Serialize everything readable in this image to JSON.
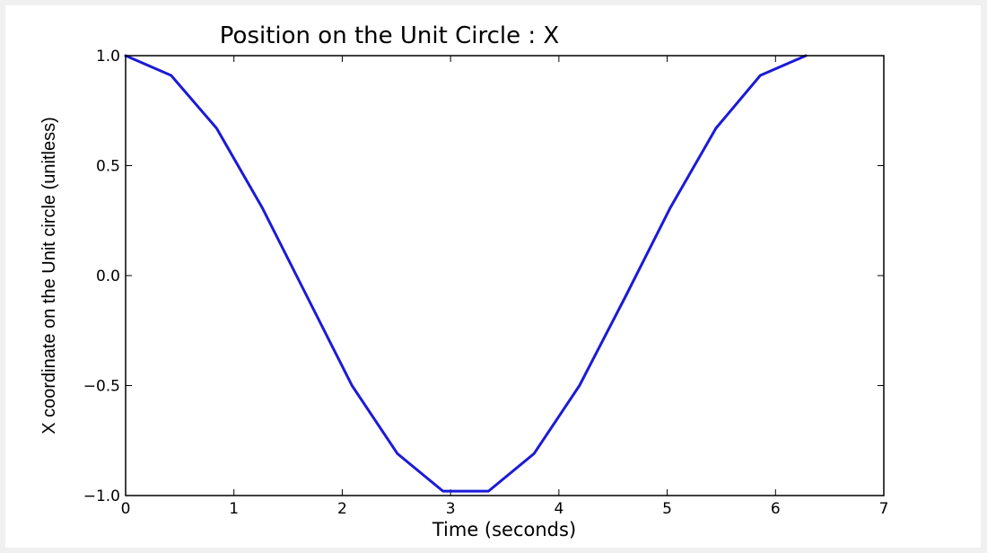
{
  "chart_data": {
    "type": "line",
    "title": "Position on the Unit Circle : X",
    "xlabel": "Time (seconds)",
    "ylabel": "X coordinate on the Unit circle (unitless)",
    "xlim": [
      0,
      7
    ],
    "ylim": [
      -1.0,
      1.0
    ],
    "xticks": [
      0,
      1,
      2,
      3,
      4,
      5,
      6,
      7
    ],
    "xtick_labels": [
      "0",
      "1",
      "2",
      "3",
      "4",
      "5",
      "6",
      "7"
    ],
    "yticks": [
      1.0,
      0.5,
      0.0,
      -0.5,
      -1.0
    ],
    "ytick_labels": [
      "1.0",
      "0.5",
      "0.0",
      "−0.5",
      "−1.0"
    ],
    "grid": false,
    "legend": "none",
    "series": [
      {
        "color": "#1a1ad8",
        "x": [
          0,
          0.42,
          0.84,
          1.26,
          1.68,
          2.09,
          2.51,
          2.93,
          3.35,
          3.77,
          4.19,
          4.61,
          5.03,
          5.45,
          5.86,
          6.28
        ],
        "y": [
          1.0,
          0.91,
          0.67,
          0.31,
          -0.1,
          -0.5,
          -0.81,
          -0.98,
          -0.98,
          -0.81,
          -0.5,
          -0.1,
          0.31,
          0.67,
          0.91,
          1.0
        ]
      }
    ]
  }
}
